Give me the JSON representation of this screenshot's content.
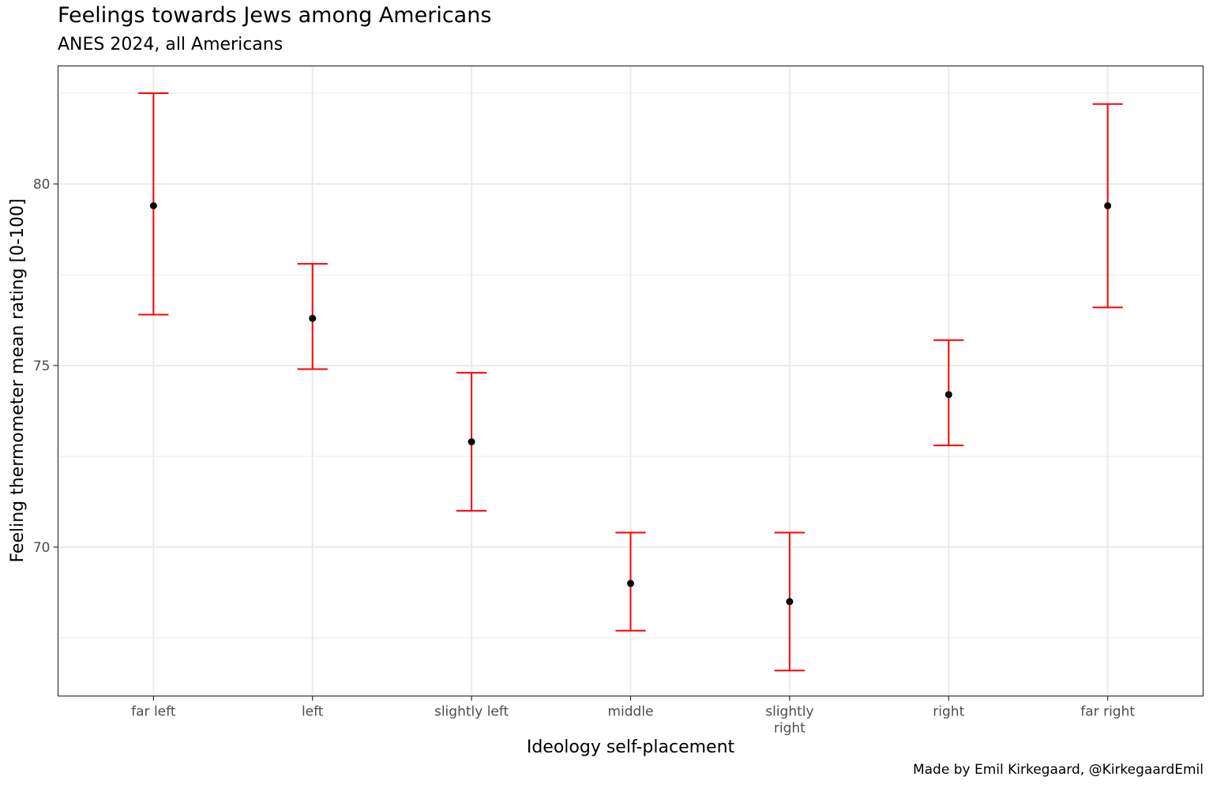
{
  "title": "Feelings towards Jews among Americans",
  "subtitle": "ANES 2024, all Americans",
  "caption": "Made by Emil Kirkegaard, @KirkegaardEmil",
  "colors": {
    "point": "#000000",
    "errorbar": "#ff0000",
    "grid": "#ebebeb",
    "panel_border": "#333333"
  },
  "chart_data": {
    "type": "scatter",
    "xlabel": "Ideology self-placement",
    "ylabel": "Feeling thermometer mean rating [0-100]",
    "categories": [
      "far left",
      "left",
      "slightly left",
      "middle",
      "slightly\nright",
      "right",
      "far right"
    ],
    "series": [
      {
        "values": [
          79.4,
          76.3,
          72.9,
          69.0,
          68.5,
          74.2,
          79.4
        ],
        "lower": [
          76.4,
          74.9,
          71.0,
          67.7,
          66.6,
          72.8,
          76.6
        ],
        "upper": [
          82.5,
          77.8,
          74.8,
          70.4,
          70.4,
          75.7,
          82.2
        ]
      }
    ],
    "ylim": [
      65.9,
      83.25
    ],
    "yticks": [
      70,
      75,
      80
    ],
    "grid": true
  }
}
